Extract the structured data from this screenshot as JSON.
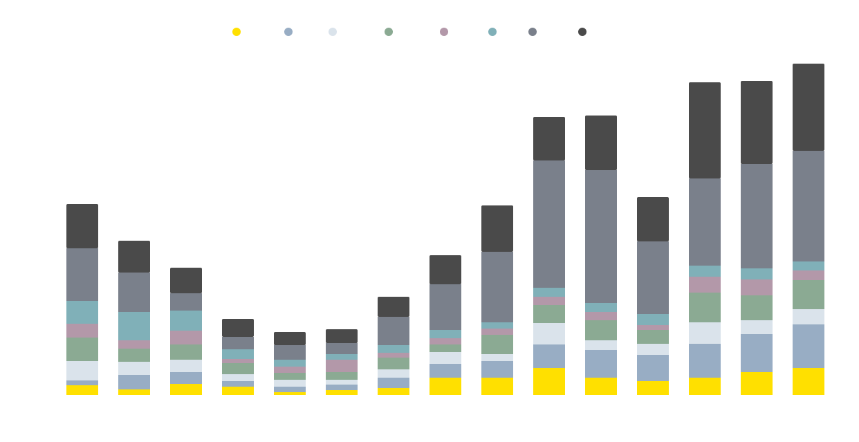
{
  "chart_data": {
    "type": "bar",
    "stacked": true,
    "title": "",
    "xlabel": "",
    "ylabel": "",
    "ylim": [
      0,
      480
    ],
    "grid": false,
    "legend_placement": "top",
    "categories": [
      "",
      "",
      "",
      "",
      "",
      "",
      "",
      "",
      "",
      "",
      "",
      "",
      "",
      "",
      ""
    ],
    "series": [
      {
        "color": "#FFE000",
        "values": [
          14,
          8,
          16,
          12,
          4,
          7,
          10,
          25,
          25,
          39,
          25,
          20,
          25,
          33,
          39
        ]
      },
      {
        "color": "#98ADC4",
        "values": [
          7,
          21,
          17,
          8,
          8,
          8,
          15,
          20,
          24,
          34,
          40,
          38,
          49,
          55,
          63
        ]
      },
      {
        "color": "#DAE3EB",
        "values": [
          28,
          19,
          18,
          10,
          10,
          7,
          12,
          17,
          10,
          31,
          14,
          16,
          31,
          20,
          22
        ]
      },
      {
        "color": "#8BAA93",
        "values": [
          34,
          19,
          22,
          16,
          10,
          11,
          17,
          11,
          28,
          26,
          29,
          20,
          43,
          36,
          42
        ]
      },
      {
        "color": "#B398A9",
        "values": [
          20,
          12,
          20,
          6,
          9,
          18,
          7,
          9,
          9,
          12,
          12,
          7,
          23,
          23,
          14
        ]
      },
      {
        "color": "#80B0B8",
        "values": [
          33,
          41,
          29,
          14,
          10,
          8,
          11,
          12,
          9,
          13,
          13,
          16,
          16,
          16,
          13
        ]
      },
      {
        "color": "#7A808B",
        "values": [
          76,
          57,
          25,
          18,
          21,
          16,
          41,
          66,
          102,
          184,
          192,
          105,
          126,
          151,
          160
        ]
      },
      {
        "color": "#4A4A4A",
        "values": [
          64,
          46,
          37,
          26,
          19,
          20,
          29,
          42,
          67,
          63,
          79,
          64,
          139,
          120,
          126
        ]
      }
    ]
  }
}
